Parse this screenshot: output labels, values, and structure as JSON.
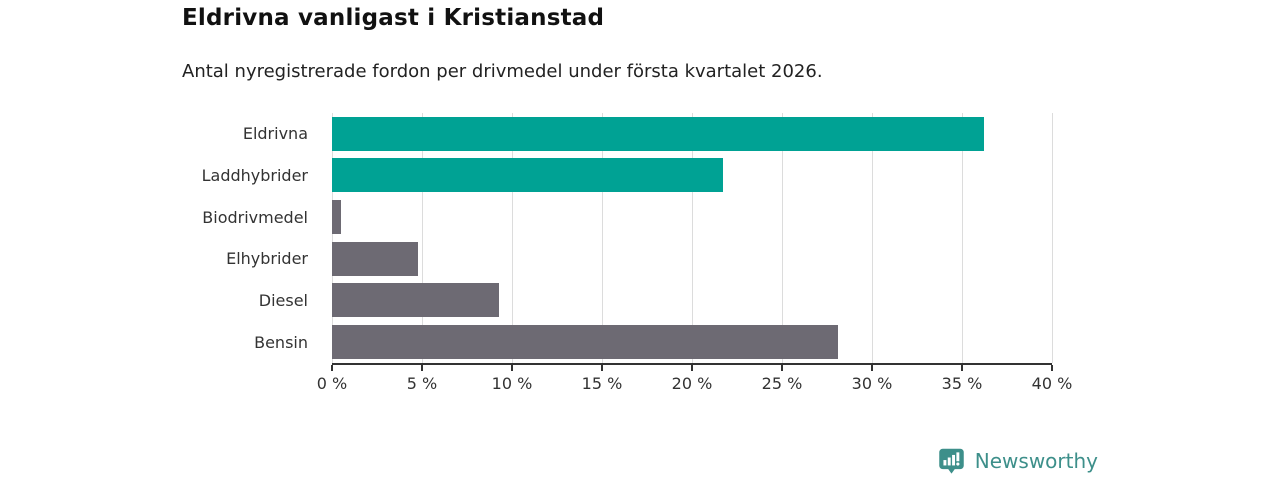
{
  "chart_data": {
    "type": "bar",
    "orientation": "horizontal",
    "title": "Eldrivna vanligast i Kristianstad",
    "subtitle": "Antal nyregistrerade fordon per drivmedel under första kvartalet 2026.",
    "categories": [
      "Eldrivna",
      "Laddhybrider",
      "Biodrivmedel",
      "Elhybrider",
      "Diesel",
      "Bensin"
    ],
    "values": [
      36.2,
      21.7,
      0.5,
      4.8,
      9.3,
      28.1
    ],
    "unit": "%",
    "bar_colors": [
      "#00a294",
      "#00a294",
      "#6d6a73",
      "#6d6a73",
      "#6d6a73",
      "#6d6a73"
    ],
    "xlim": [
      0,
      40
    ],
    "x_ticks": [
      0,
      5,
      10,
      15,
      20,
      25,
      30,
      35,
      40
    ],
    "x_tick_labels": [
      "0 %",
      "5 %",
      "10 %",
      "15 %",
      "20 %",
      "25 %",
      "30 %",
      "35 %",
      "40 %"
    ],
    "grid": "vertical",
    "legend": "none"
  },
  "colors": {
    "accent_teal": "#00a294",
    "neutral_gray": "#6d6a73",
    "gridline": "#dcdcdc",
    "axis": "#333333",
    "text": "#333333",
    "title": "#111111",
    "brand": "#3d8f8a"
  },
  "footer": {
    "brand": "Newsworthy",
    "logo_icon": "newsworthy-bubble-barchart-icon"
  }
}
